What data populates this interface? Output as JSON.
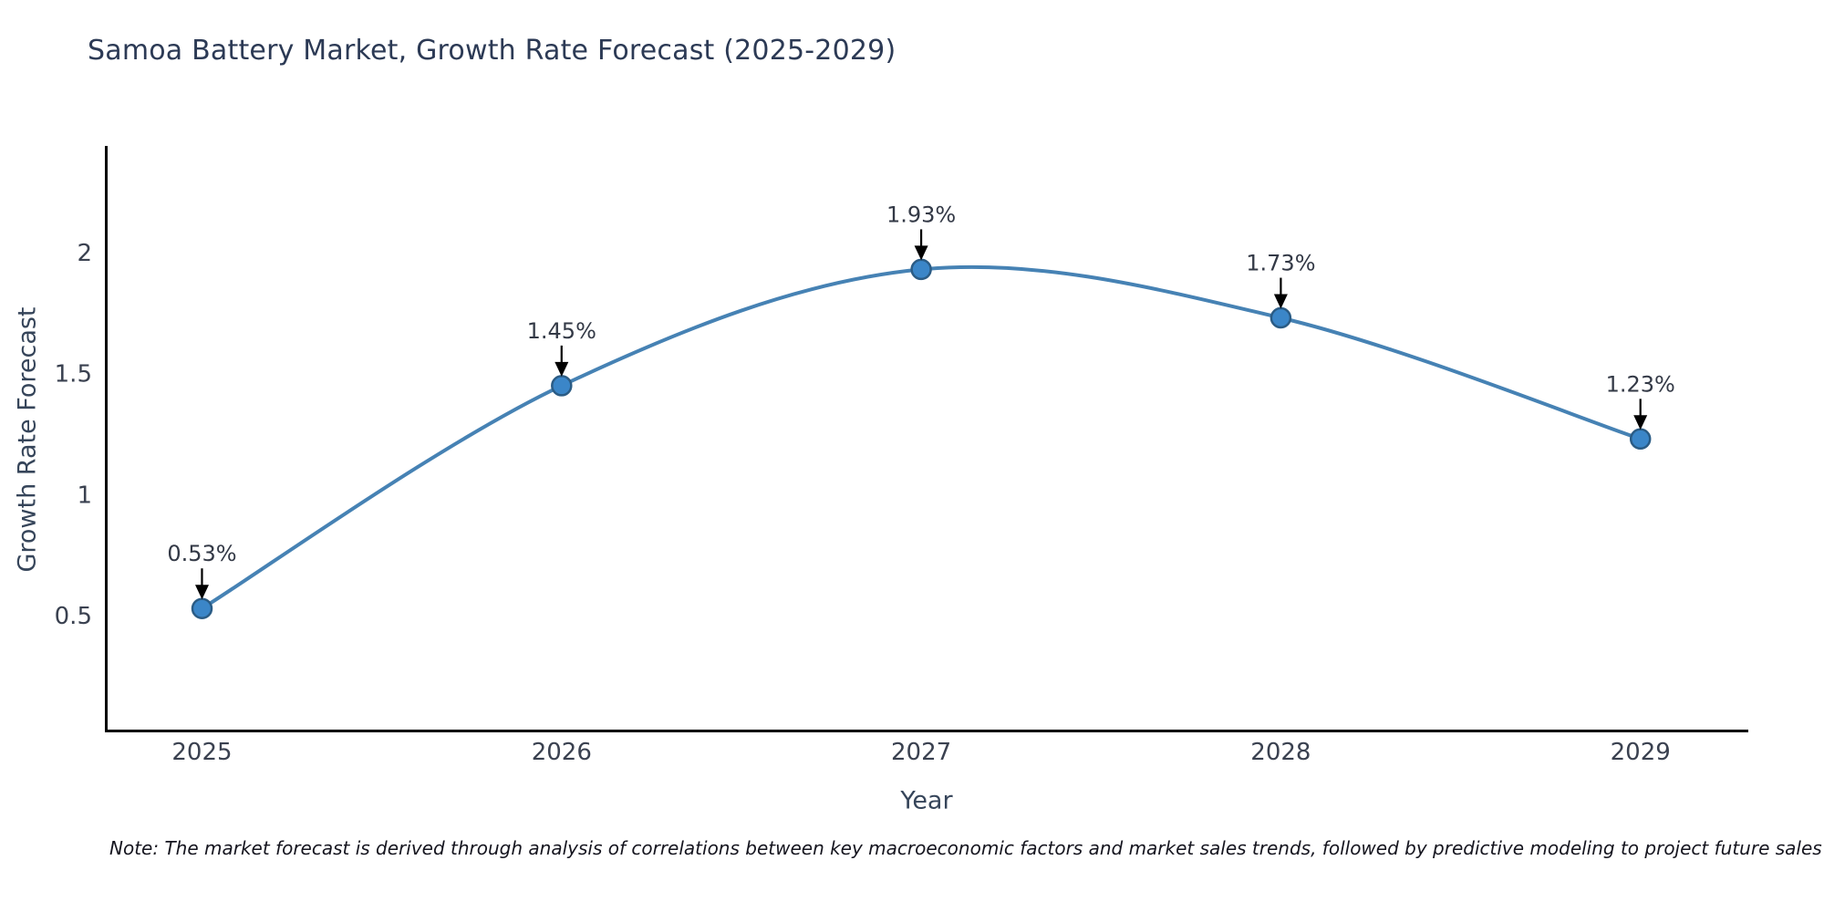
{
  "chart_data": {
    "type": "line",
    "title": "Samoa Battery Market, Growth Rate Forecast (2025-2029)",
    "xlabel": "Year",
    "ylabel": "Growth Rate Forecast",
    "note": "Note: The market forecast is derived through analysis of correlations between key macroeconomic factors and market sales trends, followed by predictive modeling to project future sales",
    "categories": [
      "2025",
      "2026",
      "2027",
      "2028",
      "2029"
    ],
    "x": [
      2025,
      2026,
      2027,
      2028,
      2029
    ],
    "values": [
      0.53,
      1.45,
      1.93,
      1.73,
      1.23
    ],
    "point_labels": [
      "0.53%",
      "1.45%",
      "1.93%",
      "1.73%",
      "1.23%"
    ],
    "yticks": [
      0.5,
      1,
      1.5,
      2
    ],
    "ytick_labels": [
      "0.5",
      "1",
      "1.5",
      "2"
    ],
    "xlim": [
      2024.73,
      2029.3
    ],
    "ylim": [
      0.03,
      2.44
    ],
    "grid": false,
    "legend": null,
    "smooth": true,
    "line_color": "#4682b4",
    "marker_fill": "#3b86c8",
    "marker_edge": "#2b5c85",
    "annotation_arrow_color": "#000000"
  },
  "colors": {
    "background": "#ffffff",
    "spine": "#000000",
    "title": "#2c3a55",
    "axis_label": "#36455a",
    "tick_label": "#3a4150",
    "annotation_text": "#333946",
    "note_text": "#15151f"
  }
}
